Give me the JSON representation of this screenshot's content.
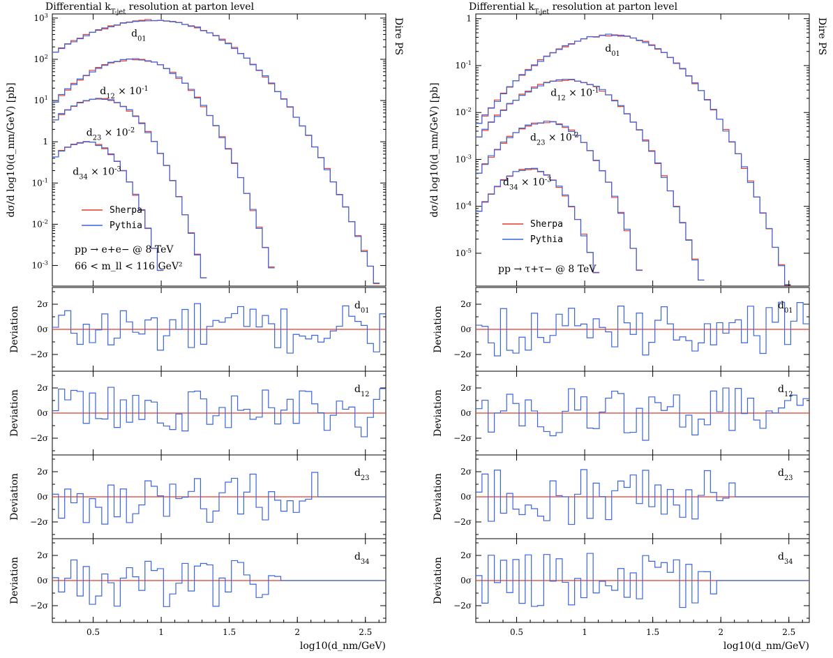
{
  "chart_data": [
    {
      "type": "line",
      "title": "Differential k_T-jet resolution at parton level",
      "side_label": "Dire PS",
      "ylabel": "dσ/d log10(d_nm/GeV) [pb]",
      "xlabel": "log10(d_nm/GeV)",
      "xlim": [
        0.2,
        2.65
      ],
      "ylim_log10": [
        -3.5,
        3.1
      ],
      "y_ticks": [
        {
          "e": 3,
          "label": "10^3"
        },
        {
          "e": 2,
          "label": "10^2"
        },
        {
          "e": 1,
          "label": "10^1"
        },
        {
          "e": 0,
          "label": "1"
        },
        {
          "e": -1,
          "label": "10^-1"
        },
        {
          "e": -2,
          "label": "10^-2"
        },
        {
          "e": -3,
          "label": "10^-3"
        }
      ],
      "x_ticks": [
        "0.5",
        "1",
        "1.5",
        "2",
        "2.5"
      ],
      "series": [
        {
          "name": "Sherpa",
          "color": "#e8392a"
        },
        {
          "name": "Pythia",
          "color": "#3a63e0"
        }
      ],
      "curves": [
        {
          "label": "d01",
          "peak_x": 0.95,
          "peak_log10": 2.95,
          "width": 1.05,
          "label_x": 0.78,
          "label_log10": 2.55
        },
        {
          "label": "d12 × 10^-1",
          "peak_x": 0.8,
          "peak_log10": 2.0,
          "width": 0.72,
          "label_x": 0.55,
          "label_log10": 1.15
        },
        {
          "label": "d23 × 10^-2",
          "peak_x": 0.55,
          "peak_log10": 1.05,
          "width": 0.58,
          "label_x": 0.45,
          "label_log10": 0.15
        },
        {
          "label": "d34 × 10^-3",
          "peak_x": 0.45,
          "peak_log10": 0.0,
          "width": 0.48,
          "label_x": 0.35,
          "label_log10": -0.8
        }
      ],
      "process_lines": [
        "pp → e+e− @ 8 TeV",
        "66 < m_ll < 116 GeV²"
      ],
      "ratio_panels": [
        {
          "label": "d01",
          "ylabel": "Deviation",
          "y_ticks": [
            "2σ",
            "0σ",
            "−2σ"
          ]
        },
        {
          "label": "d12",
          "ylabel": "Deviation",
          "y_ticks": [
            "2σ",
            "0σ",
            "−2σ"
          ]
        },
        {
          "label": "d23",
          "ylabel": "Deviation",
          "y_ticks": [
            "2σ",
            "0σ",
            "−2σ"
          ]
        },
        {
          "label": "d34",
          "ylabel": "Deviation",
          "y_ticks": [
            "2σ",
            "0σ",
            "−2σ"
          ]
        }
      ]
    },
    {
      "type": "line",
      "title": "Differential k_T-jet resolution at parton level",
      "side_label": "Dire PS",
      "ylabel": "dσ/d log10(d_nm/GeV) [pb]",
      "xlabel": "log10(d_nm/GeV)",
      "xlim": [
        0.2,
        2.65
      ],
      "ylim_log10": [
        -5.7,
        0.1
      ],
      "y_ticks": [
        {
          "e": 0,
          "label": "1"
        },
        {
          "e": -1,
          "label": "10^-1"
        },
        {
          "e": -2,
          "label": "10^-2"
        },
        {
          "e": -3,
          "label": "10^-3"
        },
        {
          "e": -4,
          "label": "10^-4"
        },
        {
          "e": -5,
          "label": "10^-5"
        }
      ],
      "x_ticks": [
        "0.5",
        "1",
        "1.5",
        "2",
        "2.5"
      ],
      "series": [
        {
          "name": "Sherpa",
          "color": "#e8392a"
        },
        {
          "name": "Pythia",
          "color": "#3a63e0"
        }
      ],
      "curves": [
        {
          "label": "d01",
          "peak_x": 1.2,
          "peak_log10": -0.35,
          "width": 0.9,
          "label_x": 1.15,
          "label_log10": -0.7
        },
        {
          "label": "d12 × 10^-1",
          "peak_x": 0.88,
          "peak_log10": -1.3,
          "width": 0.75,
          "label_x": 0.75,
          "label_log10": -1.65
        },
        {
          "label": "d23 × 10^-2",
          "peak_x": 0.72,
          "peak_log10": -2.2,
          "width": 0.6,
          "label_x": 0.6,
          "label_log10": -2.6
        },
        {
          "label": "d34 × 10^-3",
          "peak_x": 0.6,
          "peak_log10": -3.2,
          "width": 0.5,
          "label_x": 0.4,
          "label_log10": -3.55
        }
      ],
      "process_lines": [
        "pp → τ+τ− @ 8 TeV"
      ],
      "ratio_panels": [
        {
          "label": "d01",
          "ylabel": "Deviation",
          "y_ticks": [
            "2σ",
            "0σ",
            "−2σ"
          ]
        },
        {
          "label": "d12",
          "ylabel": "Deviation",
          "y_ticks": [
            "2σ",
            "0σ",
            "−2σ"
          ]
        },
        {
          "label": "d23",
          "ylabel": "Deviation",
          "y_ticks": [
            "2σ",
            "0σ",
            "−2σ"
          ]
        },
        {
          "label": "d34",
          "ylabel": "Deviation",
          "y_ticks": [
            "2σ",
            "0σ",
            "−2σ"
          ]
        }
      ]
    }
  ]
}
